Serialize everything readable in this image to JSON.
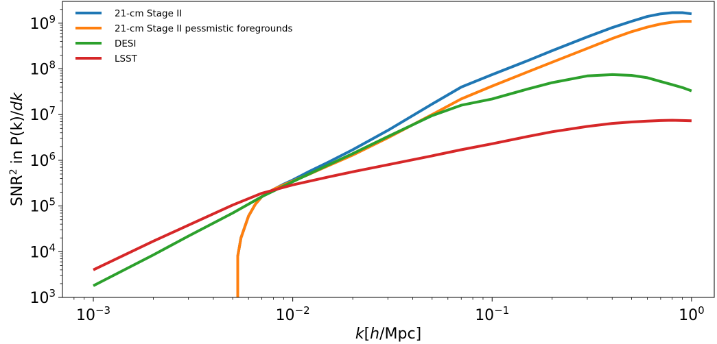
{
  "chart_data": {
    "type": "line",
    "title": "",
    "xlabel": "k[h/Mpc]",
    "xlabel_parts": {
      "var": "k",
      "open": "[",
      "unit_var": "h",
      "unit_rest": "/Mpc]"
    },
    "ylabel": "SNR² in P(k)/dk",
    "ylabel_parts": {
      "pre": "SNR",
      "sup": "2",
      "mid": " in P(k)/",
      "var": "dk"
    },
    "x_scale": "log",
    "y_scale": "log",
    "xlim": [
      0.0007,
      1.3
    ],
    "ylim": [
      1000,
      3000000000
    ],
    "x_ticks": [
      {
        "value": 0.001,
        "base": "10",
        "exp": "−3"
      },
      {
        "value": 0.01,
        "base": "10",
        "exp": "−2"
      },
      {
        "value": 0.1,
        "base": "10",
        "exp": "−1"
      },
      {
        "value": 1,
        "base": "10",
        "exp": "0"
      }
    ],
    "y_ticks": [
      {
        "value": 1000,
        "base": "10",
        "exp": "3"
      },
      {
        "value": 10000,
        "base": "10",
        "exp": "4"
      },
      {
        "value": 100000,
        "base": "10",
        "exp": "5"
      },
      {
        "value": 1000000,
        "base": "10",
        "exp": "6"
      },
      {
        "value": 10000000,
        "base": "10",
        "exp": "7"
      },
      {
        "value": 100000000,
        "base": "10",
        "exp": "8"
      },
      {
        "value": 1000000000,
        "base": "10",
        "exp": "9"
      }
    ],
    "grid": false,
    "legend_position": "top-left",
    "series": [
      {
        "name": "21-cm Stage II",
        "color": "#1f77b4",
        "x": [
          0.0053,
          0.0053,
          0.0055,
          0.006,
          0.0065,
          0.007,
          0.008,
          0.009,
          0.01,
          0.012,
          0.015,
          0.02,
          0.03,
          0.05,
          0.07,
          0.1,
          0.15,
          0.2,
          0.3,
          0.4,
          0.5,
          0.6,
          0.7,
          0.8,
          0.9,
          1.0
        ],
        "y": [
          1000,
          8000,
          20000,
          60000,
          110000,
          160000,
          230000,
          300000,
          370000,
          560000,
          900000,
          1700000,
          4500000,
          17000000,
          40000000,
          75000000,
          150000000,
          250000000,
          500000000,
          800000000,
          1100000000,
          1400000000,
          1600000000,
          1700000000,
          1700000000,
          1600000000
        ]
      },
      {
        "name": "21-cm Stage II pessmistic foregrounds",
        "color": "#ff7f0e",
        "x": [
          0.0053,
          0.0053,
          0.0055,
          0.006,
          0.0065,
          0.007,
          0.008,
          0.009,
          0.01,
          0.012,
          0.015,
          0.02,
          0.03,
          0.05,
          0.07,
          0.1,
          0.15,
          0.2,
          0.3,
          0.4,
          0.5,
          0.6,
          0.7,
          0.8,
          0.9,
          1.0
        ],
        "y": [
          1000,
          8000,
          20000,
          60000,
          110000,
          160000,
          230000,
          290000,
          350000,
          490000,
          750000,
          1300000,
          3100000,
          10000000,
          22000000,
          42000000,
          85000000,
          140000000,
          280000000,
          460000000,
          650000000,
          820000000,
          960000000,
          1050000000,
          1100000000,
          1100000000
        ]
      },
      {
        "name": "DESI",
        "color": "#2ca02c",
        "x": [
          0.001,
          0.002,
          0.003,
          0.005,
          0.007,
          0.01,
          0.015,
          0.02,
          0.03,
          0.05,
          0.07,
          0.1,
          0.15,
          0.2,
          0.3,
          0.4,
          0.5,
          0.6,
          0.7,
          0.8,
          0.9,
          1.0
        ],
        "y": [
          1800,
          8500,
          22000,
          70000,
          160000,
          340000,
          780000,
          1400000,
          3300000,
          9500000,
          16000000,
          22000000,
          36000000,
          50000000,
          70000000,
          75000000,
          72000000,
          64000000,
          53000000,
          45000000,
          39000000,
          33000000
        ]
      },
      {
        "name": "LSST",
        "color": "#d62728",
        "x": [
          0.001,
          0.002,
          0.003,
          0.005,
          0.007,
          0.01,
          0.015,
          0.02,
          0.03,
          0.05,
          0.07,
          0.1,
          0.15,
          0.2,
          0.3,
          0.4,
          0.5,
          0.6,
          0.7,
          0.8,
          0.9,
          1.0
        ],
        "y": [
          4000,
          17000,
          38000,
          105000,
          190000,
          290000,
          430000,
          560000,
          800000,
          1250000,
          1700000,
          2300000,
          3300000,
          4200000,
          5500000,
          6400000,
          6900000,
          7200000,
          7400000,
          7500000,
          7400000,
          7300000
        ]
      }
    ]
  }
}
